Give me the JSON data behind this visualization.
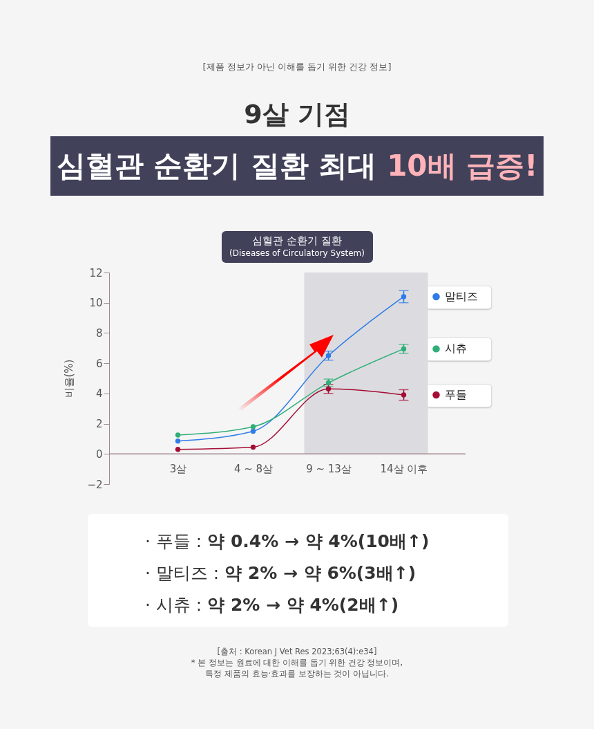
{
  "chart_data": {
    "type": "line",
    "title": "9살 기점",
    "subtitle": "심혈관 순환기 질환 최대 10배 급증!",
    "ylabel": "비율(%)",
    "categories": [
      "3살",
      "4 ~ 8살",
      "9 ~ 13살",
      "14살 이후"
    ],
    "series": [
      {
        "name": "말티즈",
        "color": "#2f7be8",
        "values": [
          0.85,
          1.5,
          6.5,
          10.4
        ],
        "errors": [
          null,
          null,
          0.3,
          0.4
        ]
      },
      {
        "name": "시츄",
        "color": "#2fae78",
        "values": [
          1.25,
          1.8,
          4.7,
          6.95
        ],
        "errors": [
          null,
          null,
          0.25,
          0.3
        ]
      },
      {
        "name": "푸들",
        "color": "#a50d35",
        "values": [
          0.3,
          0.45,
          4.3,
          3.9
        ],
        "errors": [
          null,
          null,
          0.3,
          0.35
        ]
      }
    ],
    "ylim": [
      -2,
      12
    ],
    "yticks": [
      -2,
      0,
      2,
      4,
      6,
      8,
      10,
      12
    ],
    "grid": false,
    "legend": "right",
    "marker": "circle",
    "line_style": "solid",
    "bands": [
      {
        "axis": "x",
        "from": "9 ~ 13살",
        "to": "14살 이후",
        "color": "#dcdce0"
      }
    ],
    "annotations": [
      "[제품 정보가 아닌 이해를 돕기 위한 건강 정보]",
      "심혈관 순환기 질환",
      "(Diseases of Circulatory System)",
      "· 푸들 : 약 0.4% → 약 4%(10배↑)",
      "· 말티즈 : 약 2% → 약 6%(3배↑)",
      "· 시츄 : 약 2% → 약 4%(2배↑)",
      "[출처 : Korean J Vet Res 2023;63(4):e34]",
      "* 본 정보는 원료에 대한 이해를 돕기 위한 건강 정보이며,",
      "특정 제품의 효능·효과를 보장하는 것이 아닙니다."
    ]
  }
}
